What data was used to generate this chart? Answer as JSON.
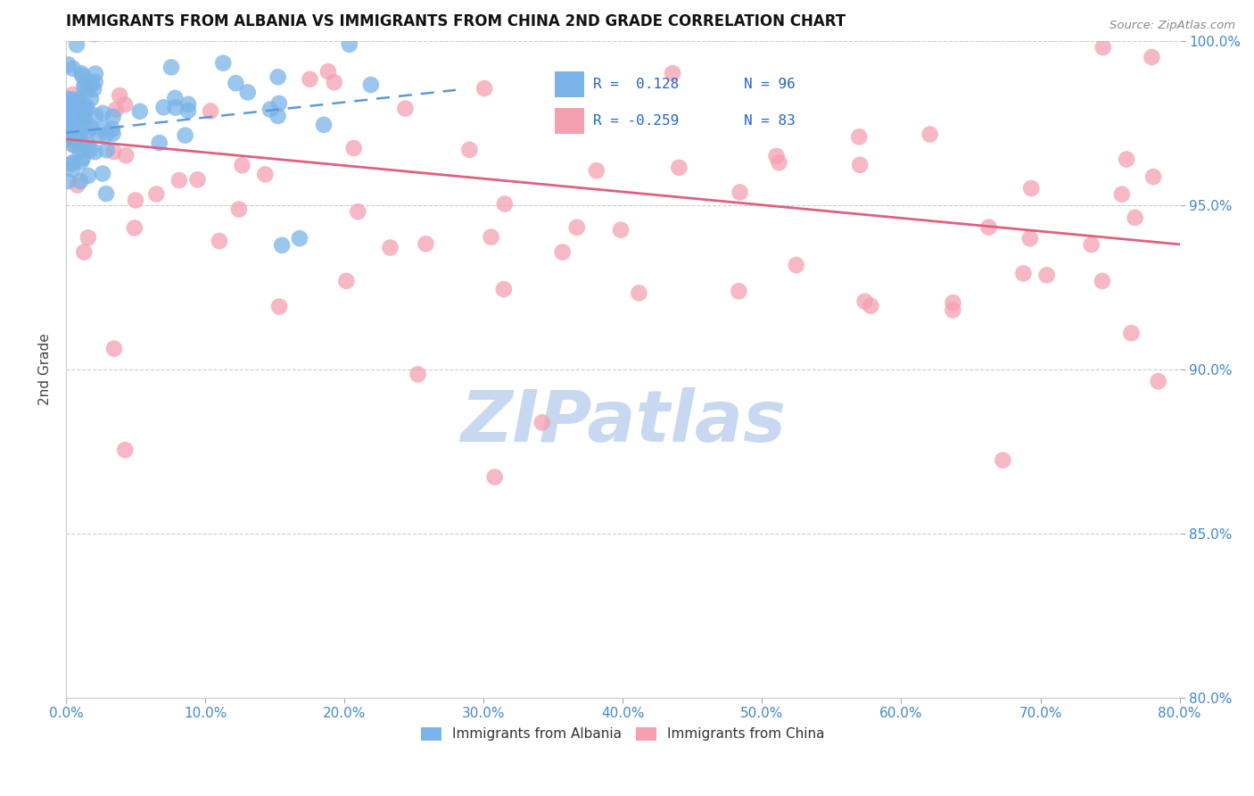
{
  "title": "IMMIGRANTS FROM ALBANIA VS IMMIGRANTS FROM CHINA 2ND GRADE CORRELATION CHART",
  "source": "Source: ZipAtlas.com",
  "ylabel": "2nd Grade",
  "xlim": [
    0.0,
    80.0
  ],
  "ylim": [
    80.0,
    100.0
  ],
  "xticks": [
    0.0,
    10.0,
    20.0,
    30.0,
    40.0,
    50.0,
    60.0,
    70.0,
    80.0
  ],
  "yticks": [
    80.0,
    85.0,
    90.0,
    95.0,
    100.0
  ],
  "albania_color": "#7ab4e8",
  "china_color": "#f4a0b0",
  "albania_line_color": "#5a9ad8",
  "china_line_color": "#e06080",
  "legend_label_albania": "Immigrants from Albania",
  "legend_label_china": "Immigrants from China",
  "watermark": "ZIPatlas",
  "watermark_color": "#c8d8f0",
  "albania_trend_x": [
    0.0,
    28.0
  ],
  "albania_trend_y": [
    97.2,
    98.5
  ],
  "china_trend_x": [
    0.0,
    80.0
  ],
  "china_trend_y": [
    97.0,
    93.8
  ]
}
